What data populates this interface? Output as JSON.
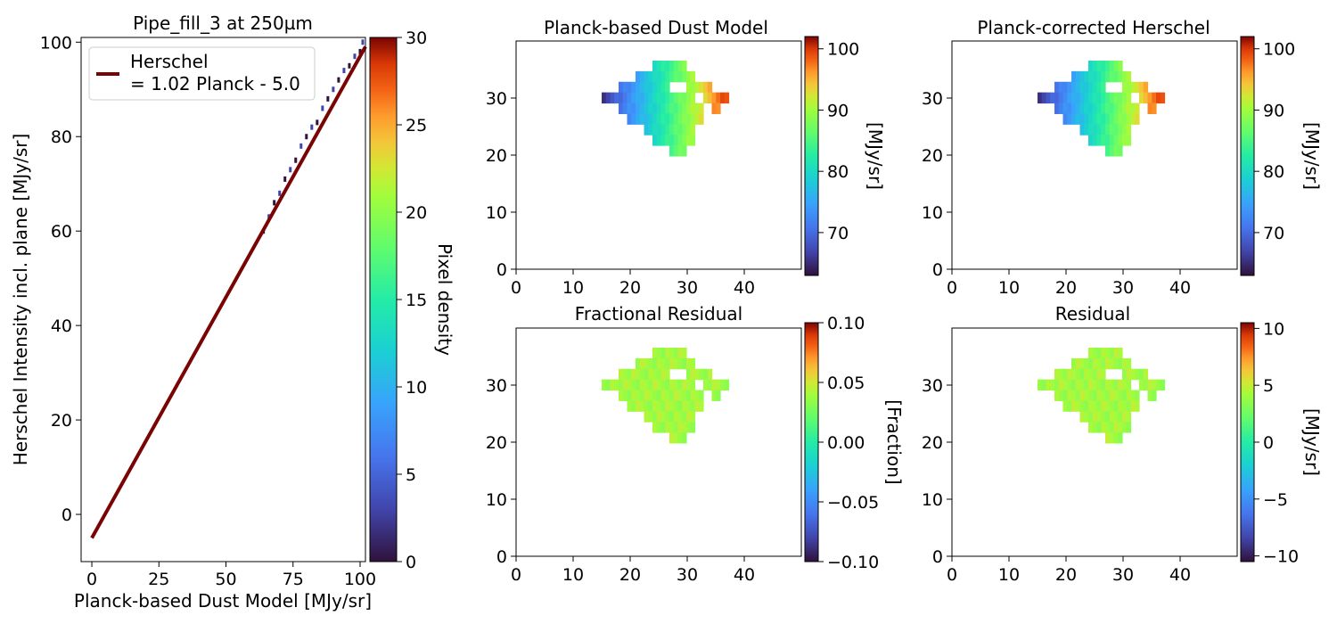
{
  "chart_data": [
    {
      "type": "scatter",
      "title": "Pipe_fill_3 at 250µm",
      "xlabel": "Planck-based Dust Model [MJy/sr]",
      "ylabel": "Herschel Intensity incl. plane [MJy/sr]",
      "xlim": [
        -4,
        102
      ],
      "ylim": [
        -10,
        101
      ],
      "xticks": [
        "0",
        "25",
        "50",
        "75",
        "100"
      ],
      "yticks": [
        "0",
        "20",
        "40",
        "60",
        "80",
        "100"
      ],
      "fit_line": {
        "label": "Herschel\n= 1.02 Planck - 5.0",
        "label_line1": "Herschel",
        "label_line2": "= 1.02 Planck - 5.0",
        "slope": 1.02,
        "intercept": -5.0,
        "x_range": [
          0,
          102
        ],
        "color": "#7a0403"
      },
      "density_points": [
        [
          64,
          60
        ],
        [
          66,
          63
        ],
        [
          68,
          66
        ],
        [
          70,
          68
        ],
        [
          72,
          71
        ],
        [
          74,
          73
        ],
        [
          76,
          75
        ],
        [
          78,
          78
        ],
        [
          80,
          80
        ],
        [
          82,
          82
        ],
        [
          84,
          83
        ],
        [
          86,
          86
        ],
        [
          88,
          88
        ],
        [
          90,
          90
        ],
        [
          92,
          92
        ],
        [
          94,
          94
        ],
        [
          96,
          95
        ],
        [
          98,
          97
        ],
        [
          100,
          98
        ],
        [
          101,
          100
        ]
      ],
      "colorbar": {
        "label": "Pixel density",
        "range": [
          0,
          30
        ],
        "ticks": [
          "0",
          "5",
          "10",
          "15",
          "20",
          "25",
          "30"
        ],
        "colormap": "turbo"
      },
      "legend_position": "upper-left"
    },
    {
      "type": "heatmap",
      "title": "Planck-based Dust Model",
      "xlim": [
        0,
        50
      ],
      "ylim": [
        0,
        40
      ],
      "xticks": [
        "0",
        "10",
        "20",
        "30",
        "40"
      ],
      "yticks": [
        "0",
        "10",
        "20",
        "30"
      ],
      "colorbar": {
        "label": "[MJy/sr]",
        "range": [
          63,
          102
        ],
        "ticks": [
          "70",
          "80",
          "90",
          "100"
        ],
        "colormap": "turbo"
      },
      "region": "diamond-shaped map, low values (~65) on the west corner rising to ~100 in the east, holes near the north-east edge"
    },
    {
      "type": "heatmap",
      "title": "Planck-corrected Herschel",
      "xlim": [
        0,
        50
      ],
      "ylim": [
        0,
        40
      ],
      "xticks": [
        "0",
        "10",
        "20",
        "30",
        "40"
      ],
      "yticks": [
        "0",
        "10",
        "20",
        "30"
      ],
      "colorbar": {
        "label": "[MJy/sr]",
        "range": [
          63,
          102
        ],
        "ticks": [
          "70",
          "80",
          "90",
          "100"
        ],
        "colormap": "turbo"
      }
    },
    {
      "type": "heatmap",
      "title": "Fractional Residual",
      "xlim": [
        0,
        50
      ],
      "ylim": [
        0,
        40
      ],
      "xticks": [
        "0",
        "10",
        "20",
        "30",
        "40"
      ],
      "yticks": [
        "0",
        "10",
        "20",
        "30"
      ],
      "colorbar": {
        "label": "[Fraction]",
        "range": [
          -0.1,
          0.1
        ],
        "ticks": [
          "0.10",
          "0.05",
          "0.00",
          "−0.05",
          "−0.10"
        ],
        "colormap": "turbo"
      },
      "region": "values near 0.00 everywhere"
    },
    {
      "type": "heatmap",
      "title": "Residual",
      "xlim": [
        0,
        50
      ],
      "ylim": [
        0,
        40
      ],
      "xticks": [
        "0",
        "10",
        "20",
        "30",
        "40"
      ],
      "yticks": [
        "0",
        "10",
        "20",
        "30"
      ],
      "colorbar": {
        "label": "[MJy/sr]",
        "range": [
          -10.5,
          10.5
        ],
        "ticks": [
          "10",
          "5",
          "0",
          "−5",
          "−10"
        ],
        "colormap": "turbo"
      },
      "region": "values near 0 everywhere"
    }
  ]
}
